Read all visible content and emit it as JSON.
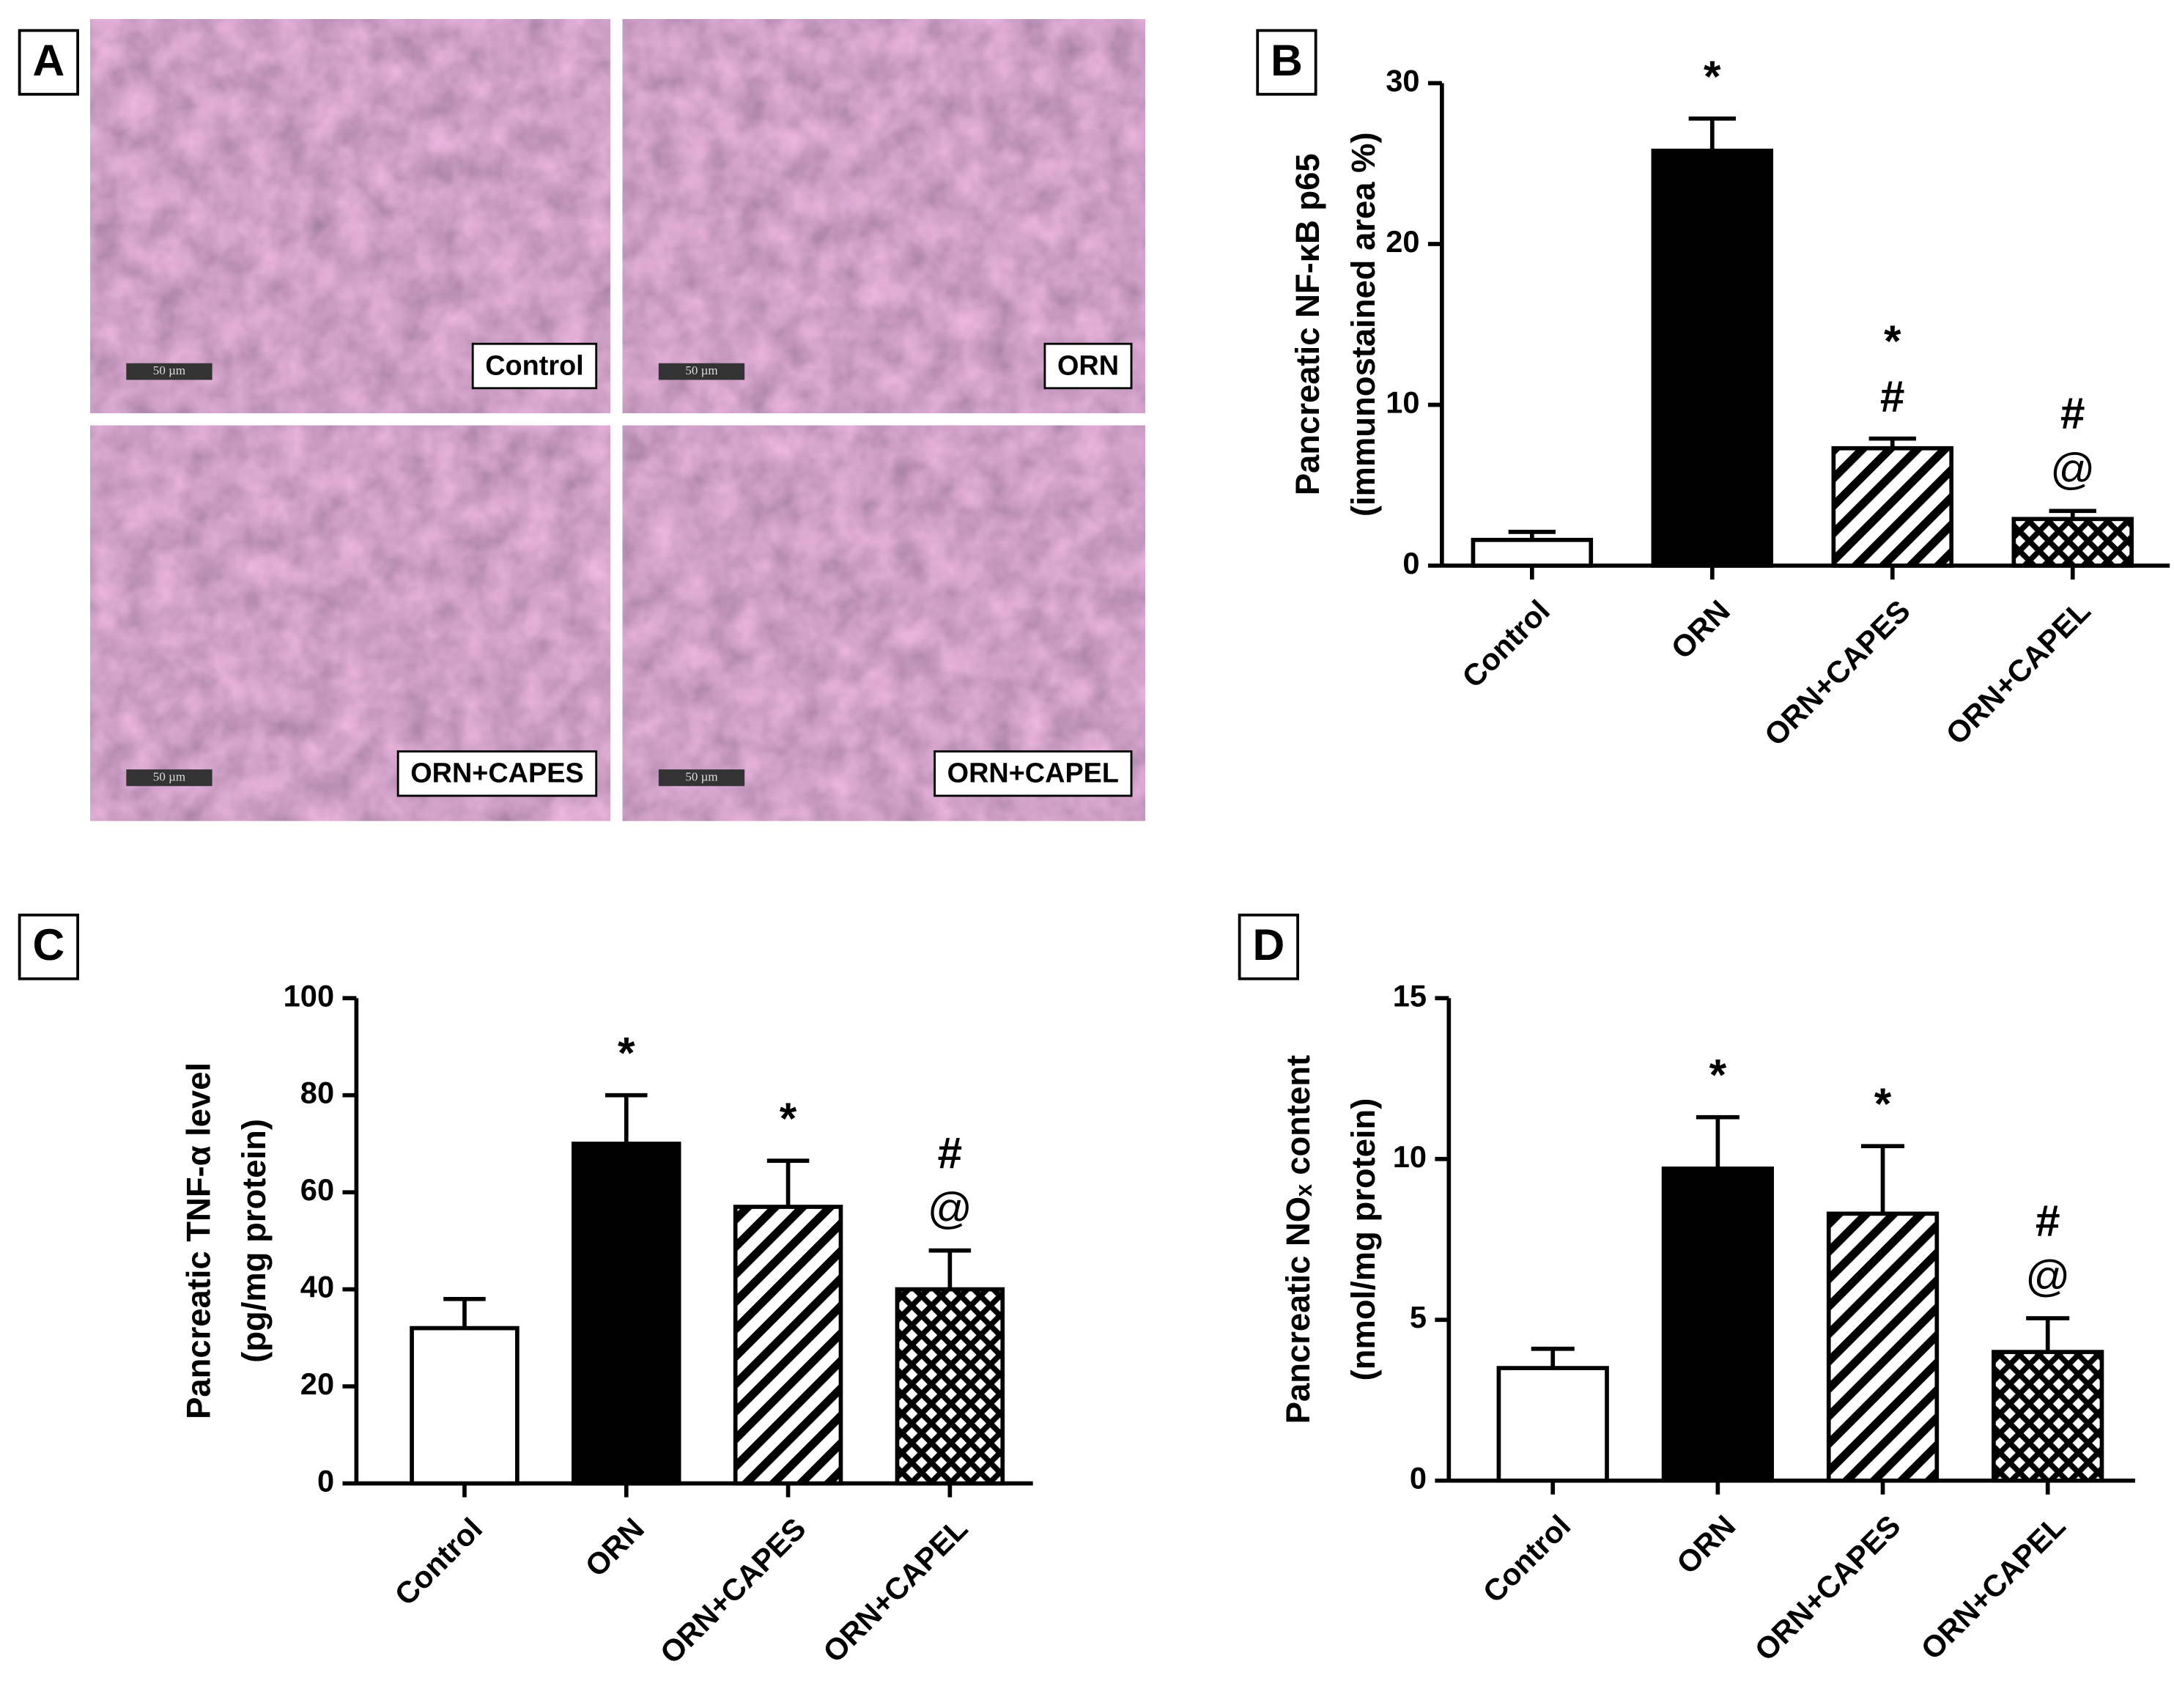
{
  "micrographs": {
    "panel_label": "A",
    "images": [
      {
        "label": "Control",
        "scale_bar": "50 µm"
      },
      {
        "label": "ORN",
        "scale_bar": "50 µm"
      },
      {
        "label": "ORN+CAPES",
        "scale_bar": "50 µm"
      },
      {
        "label": "ORN+CAPEL",
        "scale_bar": "50 µm"
      }
    ]
  },
  "chart_data": [
    {
      "type": "bar",
      "panel_label": "B",
      "ylabel": [
        "Pancreatic NF-κB p65",
        "(immunostained area %)"
      ],
      "categories": [
        "Control",
        "ORN",
        "ORN+CAPES",
        "ORN+CAPEL"
      ],
      "values": [
        1.6,
        25.8,
        7.3,
        2.9
      ],
      "errors": [
        0.5,
        2.0,
        0.6,
        0.5
      ],
      "fills": [
        "white",
        "black",
        "hatch",
        "crosshatch"
      ],
      "annotations": [
        [],
        [
          "*"
        ],
        [
          "*",
          "#"
        ],
        [
          "#",
          "@"
        ]
      ],
      "ylim": [
        0,
        30
      ],
      "yticks": [
        0,
        10,
        20,
        30
      ]
    },
    {
      "type": "bar",
      "panel_label": "C",
      "ylabel": [
        "Pancreatic TNF-α level",
        "(pg/mg protein)"
      ],
      "categories": [
        "Control",
        "ORN",
        "ORN+CAPES",
        "ORN+CAPEL"
      ],
      "values": [
        32,
        70,
        57,
        40
      ],
      "errors": [
        6,
        10,
        9.5,
        8
      ],
      "fills": [
        "white",
        "black",
        "hatch",
        "crosshatch"
      ],
      "annotations": [
        [],
        [
          "*"
        ],
        [
          "*"
        ],
        [
          "#",
          "@"
        ]
      ],
      "ylim": [
        0,
        100
      ],
      "yticks": [
        0,
        20,
        40,
        60,
        80,
        100
      ]
    },
    {
      "type": "bar",
      "panel_label": "D",
      "ylabel": [
        "Pancreatic NOₓ content",
        "(nmol/mg protein)"
      ],
      "categories": [
        "Control",
        "ORN",
        "ORN+CAPES",
        "ORN+CAPEL"
      ],
      "values": [
        3.5,
        9.7,
        8.3,
        4.0
      ],
      "errors": [
        0.6,
        1.6,
        2.1,
        1.05
      ],
      "fills": [
        "white",
        "black",
        "hatch",
        "crosshatch"
      ],
      "annotations": [
        [],
        [
          "*"
        ],
        [
          "*"
        ],
        [
          "#",
          "@"
        ]
      ],
      "ylim": [
        0,
        15
      ],
      "yticks": [
        0,
        5,
        10,
        15
      ]
    }
  ]
}
